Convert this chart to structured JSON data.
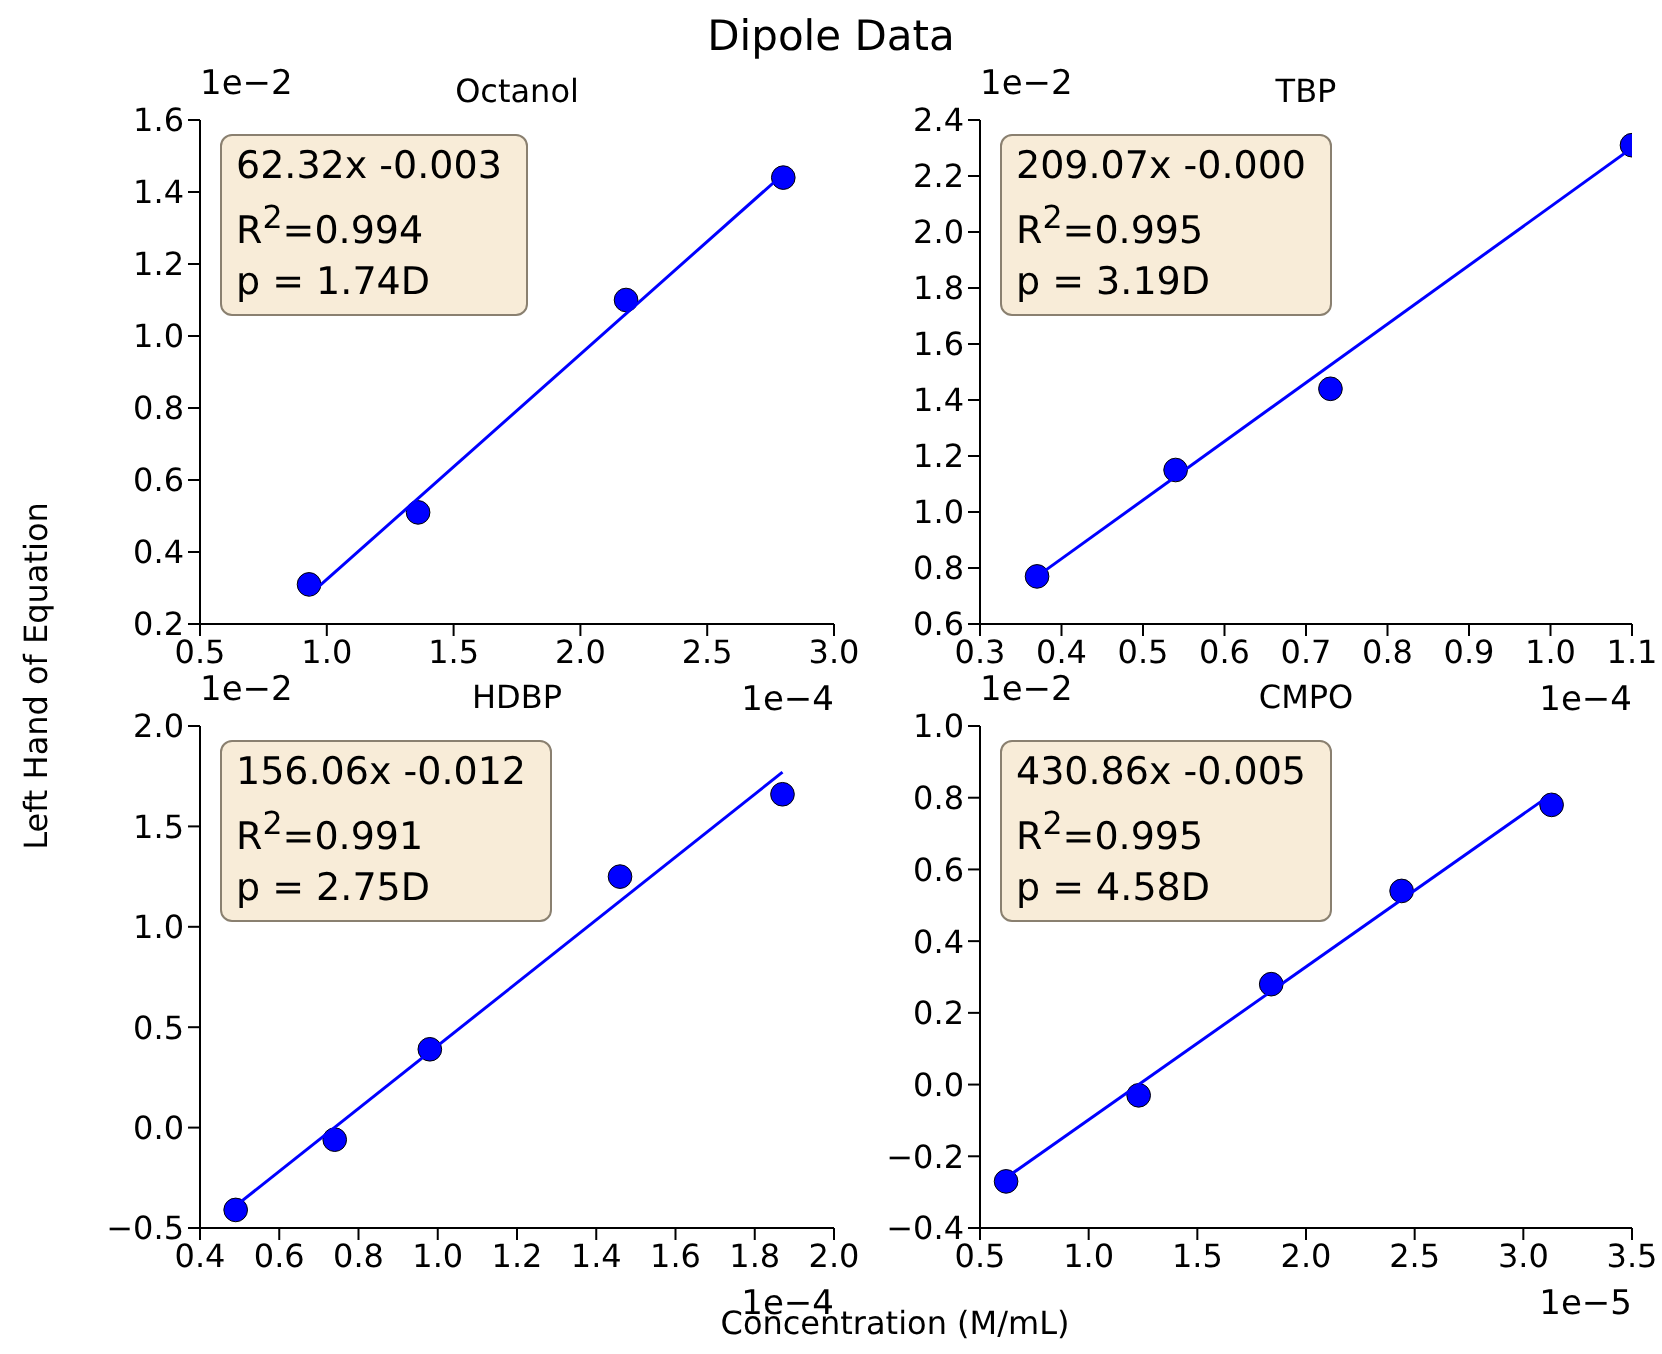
{
  "chart_data": [
    {
      "type": "scatter",
      "title": "Octanol",
      "ylabel": "Left Hand of Equation",
      "grid": false,
      "xlim": [
        0.5,
        3.0
      ],
      "xticks": [
        0.5,
        {
          "value": 1,
          "label": "1.0"
        },
        1.5,
        {
          "value": 2,
          "label": "2.0"
        },
        2.5,
        {
          "value": 3,
          "label": "3.0"
        }
      ],
      "ylim": [
        0.2,
        1.6
      ],
      "yticks": [
        0.2,
        0.4,
        0.6,
        0.8,
        {
          "value": 1,
          "label": "1.0"
        },
        1.2,
        1.4,
        1.6
      ],
      "annotations": [
        "62.32x -0.003",
        "R$^{2}$=0.994",
        "p = 1.74D",
        "1e−2",
        "1e−4",
        "Dipole Data"
      ],
      "series": [
        {
          "marker": "circle",
          "color": "#0000ff",
          "x": [
            0.93,
            1.36,
            2.18,
            2.8
          ],
          "values": [
            0.31,
            0.51,
            1.1,
            1.44
          ]
        },
        {
          "type": "line",
          "color": "#0000ff",
          "x": [
            0.93,
            2.8
          ],
          "values": [
            0.28,
            1.45
          ]
        }
      ]
    },
    {
      "type": "scatter",
      "title": "TBP",
      "grid": false,
      "xlim": [
        0.3,
        1.1
      ],
      "xticks": [
        0.3,
        0.4,
        0.5,
        0.6,
        0.7,
        0.8,
        0.9,
        {
          "value": 1,
          "label": "1.0"
        },
        1.1
      ],
      "ylim": [
        0.6,
        2.4
      ],
      "yticks": [
        0.6,
        0.8,
        {
          "value": 1,
          "label": "1.0"
        },
        1.2,
        1.4,
        1.6,
        1.8,
        {
          "value": 2,
          "label": "2.0"
        },
        2.2,
        2.4
      ],
      "annotations": [
        "209.07x -0.000",
        "R$^{2}$=0.995",
        "p = 3.19D",
        "1e−2",
        "1e−4"
      ],
      "series": [
        {
          "marker": "circle",
          "color": "#0000ff",
          "x": [
            0.37,
            0.54,
            0.73,
            1.1
          ],
          "values": [
            0.77,
            1.15,
            1.44,
            2.31
          ]
        },
        {
          "type": "line",
          "color": "#0000ff",
          "x": [
            0.37,
            1.1
          ],
          "values": [
            0.77,
            2.3
          ]
        }
      ]
    },
    {
      "type": "scatter",
      "title": "HDBP",
      "xlabel": "Concentration (M/mL)",
      "grid": false,
      "xlim": [
        0.4,
        2.0
      ],
      "xticks": [
        0.4,
        0.6,
        0.8,
        {
          "value": 1,
          "label": "1.0"
        },
        1.2,
        1.4,
        1.6,
        1.8,
        {
          "value": 2,
          "label": "2.0"
        }
      ],
      "ylim": [
        -0.5,
        2.0
      ],
      "yticks": [
        -0.5,
        {
          "value": 0,
          "label": "0.0"
        },
        0.5,
        {
          "value": 1,
          "label": "1.0"
        },
        1.5,
        {
          "value": 2,
          "label": "2.0"
        }
      ],
      "annotations": [
        "156.06x -0.012",
        "R$^{2}$=0.991",
        "p = 2.75D",
        "1e−2",
        "1e−4"
      ],
      "series": [
        {
          "marker": "circle",
          "color": "#0000ff",
          "x": [
            0.49,
            0.74,
            0.98,
            1.46,
            1.87
          ],
          "values": [
            -0.41,
            -0.06,
            0.39,
            1.25,
            1.66
          ]
        },
        {
          "type": "line",
          "color": "#0000ff",
          "x": [
            0.49,
            1.87
          ],
          "values": [
            -0.39,
            1.77
          ]
        }
      ]
    },
    {
      "type": "scatter",
      "title": "CMPO",
      "grid": false,
      "xlim": [
        0.5,
        3.5
      ],
      "xticks": [
        0.5,
        {
          "value": 1,
          "label": "1.0"
        },
        1.5,
        {
          "value": 2,
          "label": "2.0"
        },
        2.5,
        {
          "value": 3,
          "label": "3.0"
        },
        3.5
      ],
      "ylim": [
        -0.4,
        1.0
      ],
      "yticks": [
        -0.4,
        -0.2,
        {
          "value": 0,
          "label": "0.0"
        },
        0.2,
        0.4,
        0.6,
        0.8,
        {
          "value": 1,
          "label": "1.0"
        }
      ],
      "annotations": [
        "430.86x -0.005",
        "R$^{2}$=0.995",
        "p = 4.58D",
        "1e−2",
        "1e−5"
      ],
      "series": [
        {
          "marker": "circle",
          "color": "#0000ff",
          "x": [
            0.62,
            1.23,
            1.84,
            2.44,
            3.13
          ],
          "values": [
            -0.27,
            -0.03,
            0.28,
            0.54,
            0.78
          ]
        },
        {
          "type": "line",
          "color": "#0000ff",
          "x": [
            0.62,
            3.13
          ],
          "values": [
            -0.26,
            0.81
          ]
        }
      ]
    }
  ]
}
